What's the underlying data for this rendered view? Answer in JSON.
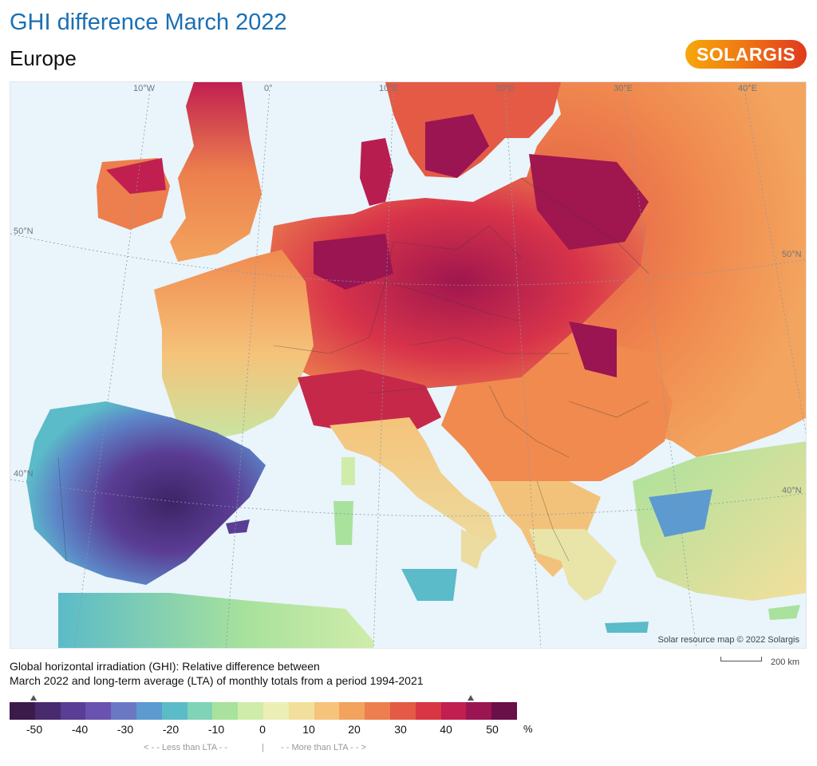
{
  "title": "GHI difference March 2022",
  "subtitle": "Europe",
  "logo_text": "SOLARGIS",
  "map": {
    "credit": "Solar resource map © 2022 Solargis",
    "graticule_labels": {
      "lon_10w": "10°W",
      "lon_0": "0°",
      "lon_10e": "10°E",
      "lon_20e": "20°E",
      "lon_30e": "30°E",
      "lon_40e": "40°E",
      "lat_50n_left": "50°N",
      "lat_50n_right": "50°N",
      "lat_40n_left": "40°N",
      "lat_40n_right": "40°N"
    },
    "scale_label": "200 km"
  },
  "description": {
    "line1": "Global horizontal irradiation (GHI): Relative difference between",
    "line2": "March 2022 and long-term average (LTA) of monthly totals from a period 1994-2021"
  },
  "legend": {
    "colors": [
      "#3b1b4a",
      "#4a2a6e",
      "#5a3d94",
      "#6a52b0",
      "#6a78c4",
      "#5c9ad0",
      "#5bbbc8",
      "#7fd3b6",
      "#a8e29c",
      "#d0ecaa",
      "#ecefb4",
      "#f3df9c",
      "#f5c37a",
      "#f2a35e",
      "#ec7f4d",
      "#e45a45",
      "#d83644",
      "#c11f50",
      "#9a1552",
      "#6a0f48"
    ],
    "ticks": [
      "-50",
      "-40",
      "-30",
      "-20",
      "-10",
      "0",
      "10",
      "20",
      "30",
      "40",
      "50"
    ],
    "unit": "%",
    "less_label": "< - -  Less than LTA  - -",
    "separator": "|",
    "more_label": "- -  More than LTA  - - >"
  }
}
